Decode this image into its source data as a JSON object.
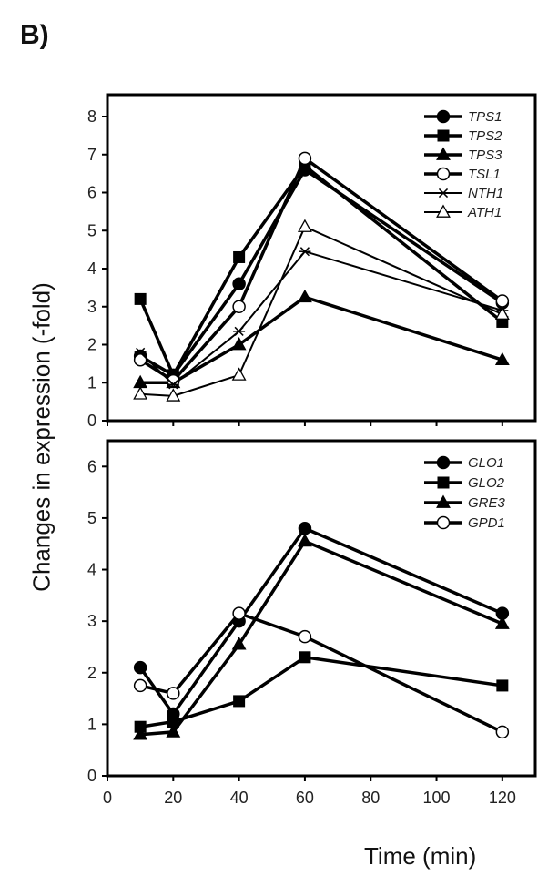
{
  "panel_label": "B)",
  "chart_data": {
    "type": "line",
    "xlabel": "Time (min)",
    "ylabel": "Changes in expression (-fold)",
    "x": [
      10,
      20,
      40,
      60,
      120
    ],
    "xlim": [
      0,
      130
    ],
    "xticks": [
      "0",
      "20",
      "40",
      "60",
      "80",
      "100",
      "120"
    ],
    "xtick_values": [
      0,
      20,
      40,
      60,
      80,
      100,
      120
    ],
    "legend_position": "top-right",
    "grid": false,
    "panels": [
      {
        "ylim": [
          0,
          8
        ],
        "yticks": [
          "0",
          "1",
          "2",
          "3",
          "4",
          "5",
          "6",
          "7",
          "8"
        ],
        "series": [
          {
            "name": "TPS1",
            "marker": "filled-circle",
            "values": [
              1.7,
              1.2,
              3.6,
              6.6,
              3.1
            ]
          },
          {
            "name": "TPS2",
            "marker": "filled-square",
            "values": [
              3.2,
              1.2,
              4.3,
              6.7,
              2.6
            ]
          },
          {
            "name": "TPS3",
            "marker": "filled-triangle",
            "values": [
              1.0,
              1.0,
              2.0,
              3.25,
              1.6
            ]
          },
          {
            "name": "TSL1",
            "marker": "open-circle",
            "values": [
              1.6,
              1.05,
              3.0,
              6.9,
              3.15
            ]
          },
          {
            "name": "NTH1",
            "marker": "asterisk",
            "values": [
              1.8,
              0.95,
              2.35,
              4.45,
              2.9
            ]
          },
          {
            "name": "ATH1",
            "marker": "open-triangle",
            "values": [
              0.7,
              0.65,
              1.2,
              5.1,
              2.8
            ]
          }
        ]
      },
      {
        "ylim": [
          0,
          6.5
        ],
        "yticks": [
          "0",
          "1",
          "2",
          "3",
          "4",
          "5",
          "6"
        ],
        "series": [
          {
            "name": "GLO1",
            "marker": "filled-circle",
            "values": [
              2.1,
              1.2,
              3.0,
              4.8,
              3.15
            ]
          },
          {
            "name": "GLO2",
            "marker": "filled-square",
            "values": [
              0.95,
              1.05,
              1.45,
              2.3,
              1.75
            ]
          },
          {
            "name": "GRE3",
            "marker": "filled-triangle",
            "values": [
              0.8,
              0.85,
              2.55,
              4.55,
              2.95
            ]
          },
          {
            "name": "GPD1",
            "marker": "open-circle",
            "values": [
              1.75,
              1.6,
              3.15,
              2.7,
              0.85
            ]
          }
        ]
      }
    ]
  }
}
